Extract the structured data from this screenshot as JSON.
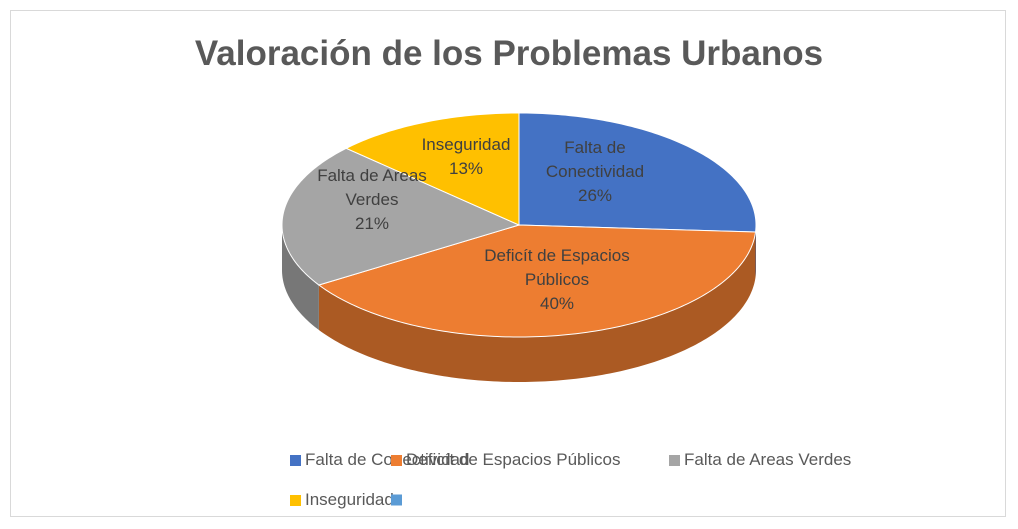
{
  "chart_data": {
    "type": "pie3d",
    "title": "Valoración de los Problemas Urbanos",
    "categories": [
      "Falta de Conectividad",
      "Deficít de Espacios Públicos",
      "Falta de Areas Verdes",
      "Inseguridad",
      null
    ],
    "values": [
      26,
      40,
      21,
      13,
      null
    ],
    "value_labels": [
      "26%",
      "40%",
      "21%",
      "13%",
      null
    ],
    "colors": [
      "#4472c4",
      "#ed7d31",
      "#a5a5a5",
      "#ffc000",
      "#5b9bd5"
    ],
    "legend": "bottom"
  }
}
